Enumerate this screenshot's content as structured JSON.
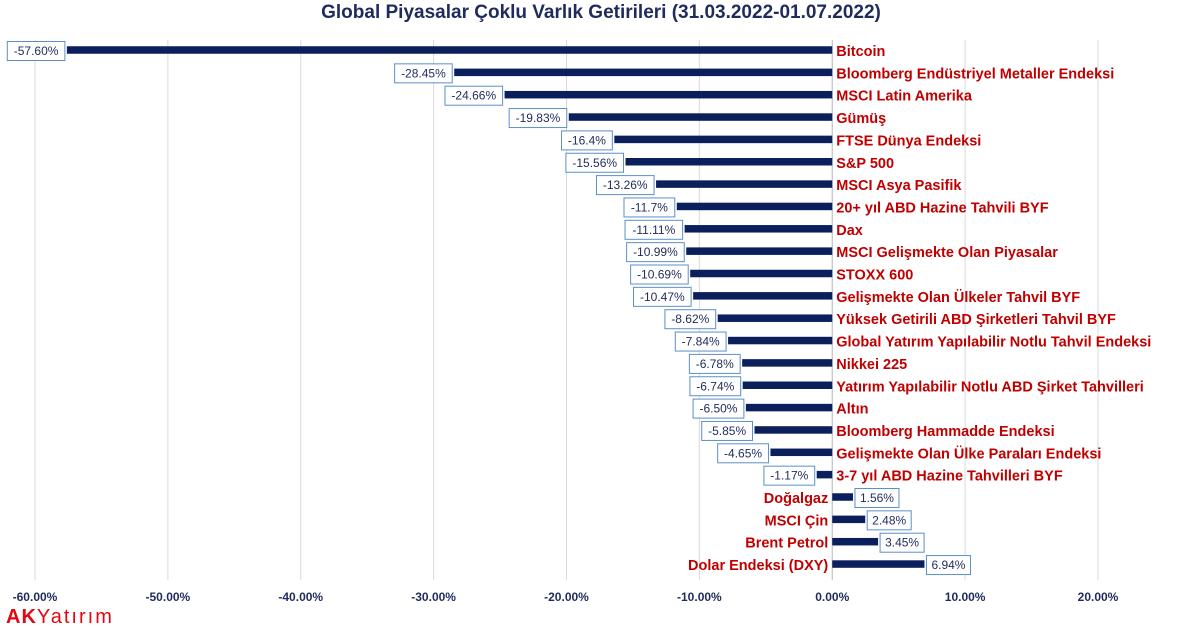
{
  "chart_data": {
    "type": "bar",
    "orientation": "horizontal",
    "title": "Global Piyasalar Çoklu Varlık Getirileri (31.03.2022-01.07.2022)",
    "xlim": [
      -60,
      20
    ],
    "x_ticks": [
      -60,
      -50,
      -40,
      -30,
      -20,
      -10,
      0,
      10,
      20
    ],
    "x_tick_labels": [
      "-60.00%",
      "-50.00%",
      "-40.00%",
      "-30.00%",
      "-20.00%",
      "-10.00%",
      "0.00%",
      "10.00%",
      "20.00%"
    ],
    "grid": "vertical",
    "bar_color": "#0b1f5c",
    "label_color": "#c00000",
    "categories": [
      "Bitcoin",
      "Bloomberg Endüstriyel Metaller Endeksi",
      "MSCI Latin Amerika",
      "Gümüş",
      "FTSE Dünya Endeksi",
      "S&P 500",
      "MSCI Asya Pasifik",
      "20+ yıl ABD Hazine Tahvili BYF",
      "Dax",
      "MSCI Gelişmekte Olan Piyasalar",
      "STOXX 600",
      "Gelişmekte Olan Ülkeler Tahvil BYF",
      "Yüksek Getirili ABD Şirketleri Tahvil BYF",
      "Global Yatırım Yapılabilir Notlu Tahvil Endeksi",
      "Nikkei 225",
      "Yatırım Yapılabilir Notlu  ABD Şirket Tahvilleri",
      "Altın",
      "Bloomberg Hammadde Endeksi",
      "Gelişmekte Olan Ülke Paraları Endeksi",
      "3-7 yıl ABD Hazine Tahvilleri BYF",
      "Doğalgaz",
      "MSCI Çin",
      "Brent Petrol",
      "Dolar Endeksi (DXY)"
    ],
    "values": [
      -57.6,
      -28.45,
      -24.66,
      -19.83,
      -16.4,
      -15.56,
      -13.26,
      -11.7,
      -11.11,
      -10.99,
      -10.69,
      -10.47,
      -8.62,
      -7.84,
      -6.78,
      -6.74,
      -6.5,
      -5.85,
      -4.65,
      -1.17,
      1.56,
      2.48,
      3.45,
      6.94
    ],
    "value_labels": [
      "-57.60%",
      "-28.45%",
      "-24.66%",
      "-19.83%",
      "-16.4%",
      "-15.56%",
      "-13.26%",
      "-11.7%",
      "-11.11%",
      "-10.99%",
      "-10.69%",
      "-10.47%",
      "-8.62%",
      "-7.84%",
      "-6.78%",
      "-6.74%",
      "-6.50%",
      "-5.85%",
      "-4.65%",
      "-1.17%",
      "1.56%",
      "2.48%",
      "3.45%",
      "6.94%"
    ]
  },
  "logo": {
    "part1": "AK",
    "part2": "Yatırım",
    "color": "#e30613"
  }
}
